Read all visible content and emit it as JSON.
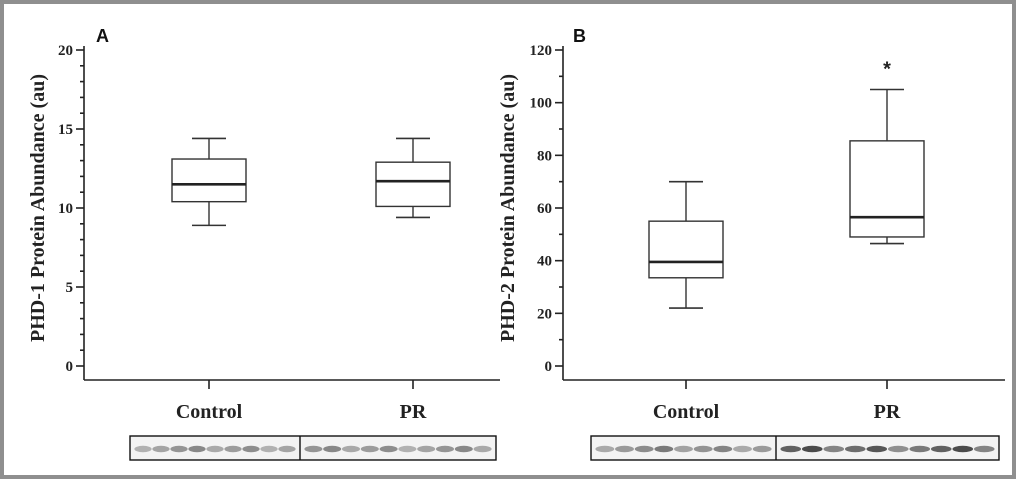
{
  "chart_data": [
    {
      "type": "box",
      "panel_label": "A",
      "ylabel": "PHD-1 Protein Abundance (au)",
      "ylim": [
        0,
        20
      ],
      "yticks": [
        0,
        5,
        10,
        15,
        20
      ],
      "ytick_labels": [
        "0",
        "5",
        "10",
        "15",
        "20"
      ],
      "categories": [
        "Control",
        "PR"
      ],
      "boxes": [
        {
          "category": "Control",
          "min": 8.9,
          "q1": 10.4,
          "median": 11.5,
          "q3": 13.1,
          "max": 14.4
        },
        {
          "category": "PR",
          "min": 9.4,
          "q1": 10.1,
          "median": 11.7,
          "q3": 12.9,
          "max": 14.4
        }
      ],
      "annotations": [],
      "blot_lanes": [
        9,
        10
      ],
      "blot_intensity": [
        0.45,
        0.45
      ]
    },
    {
      "type": "box",
      "panel_label": "B",
      "ylabel": "PHD-2 Protein Abundance (au)",
      "ylim": [
        0,
        120
      ],
      "yticks": [
        0,
        20,
        40,
        60,
        80,
        100,
        120
      ],
      "ytick_labels": [
        "0",
        "20",
        "40",
        "60",
        "80",
        "100",
        "120"
      ],
      "categories": [
        "Control",
        "PR"
      ],
      "boxes": [
        {
          "category": "Control",
          "min": 22,
          "q1": 33.5,
          "median": 39.5,
          "q3": 55,
          "max": 70
        },
        {
          "category": "PR",
          "min": 46.5,
          "q1": 49,
          "median": 56.5,
          "q3": 85.5,
          "max": 105
        }
      ],
      "annotations": [
        {
          "category": "PR",
          "text": "*",
          "y": 113
        }
      ],
      "blot_lanes": [
        9,
        10
      ],
      "blot_intensity": [
        0.5,
        0.7
      ]
    }
  ]
}
